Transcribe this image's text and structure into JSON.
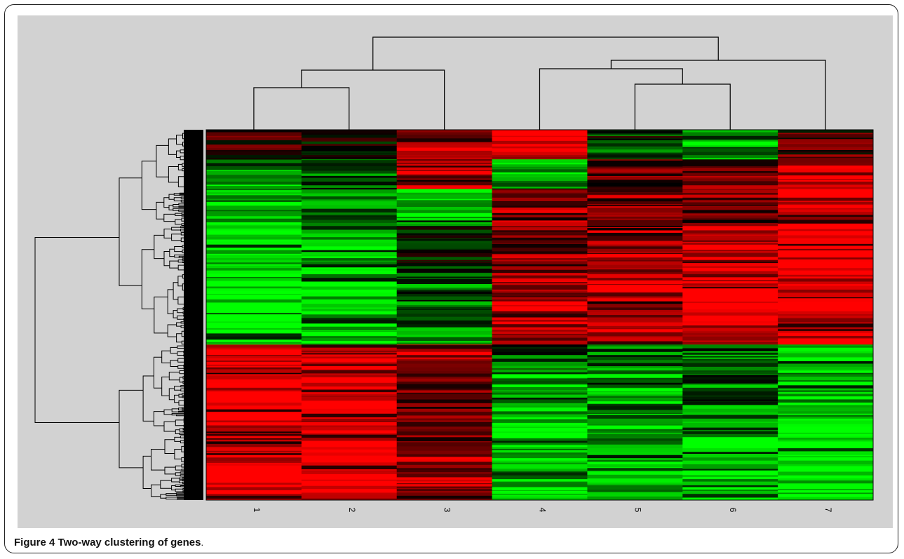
{
  "caption": {
    "label": "Figure 4",
    "text": "Two-way clustering of genes",
    "tail": "."
  },
  "colors": {
    "background": "#d2d2d2",
    "high": "#ff0000",
    "mid": "#000000",
    "low": "#00ff00",
    "dendrogram": "#000000"
  },
  "chart_data": {
    "type": "heatmap",
    "title": "",
    "xlabel": "",
    "ylabel": "",
    "categories": [
      "1",
      "2",
      "3",
      "4",
      "5",
      "6",
      "7"
    ],
    "color_scale": [
      "green",
      "black",
      "red"
    ],
    "value_range": [
      -1,
      1
    ],
    "row_count_approx": 600,
    "column_dendrogram": {
      "merges": [
        [
          "1",
          "2"
        ],
        [
          "(1,2)",
          "3"
        ],
        [
          "5",
          "6"
        ],
        [
          "4",
          "(5,6)"
        ],
        [
          "(4,(5,6))",
          "7"
        ],
        [
          "((1,2),3)",
          "((4,(5,6)),7)"
        ]
      ]
    },
    "row_blocks": [
      {
        "rows_fraction": [
          0.0,
          0.08
        ],
        "values": [
          0.2,
          0.1,
          0.6,
          1.0,
          -0.2,
          -0.6,
          0.3
        ]
      },
      {
        "rows_fraction": [
          0.08,
          0.16
        ],
        "values": [
          -0.6,
          -0.3,
          0.7,
          -0.7,
          0.3,
          0.5,
          0.8
        ]
      },
      {
        "rows_fraction": [
          0.16,
          0.26
        ],
        "values": [
          -0.8,
          -0.4,
          -0.8,
          0.6,
          0.6,
          0.4,
          0.8
        ]
      },
      {
        "rows_fraction": [
          0.26,
          0.4
        ],
        "values": [
          -0.9,
          -0.8,
          -0.2,
          0.5,
          0.7,
          0.8,
          0.9
        ]
      },
      {
        "rows_fraction": [
          0.4,
          0.58
        ],
        "values": [
          -1.0,
          -0.9,
          -0.4,
          0.6,
          0.7,
          0.9,
          0.9
        ]
      },
      {
        "rows_fraction": [
          0.58,
          0.66
        ],
        "values": [
          0.8,
          0.7,
          0.6,
          -0.3,
          -0.4,
          -0.6,
          -0.7
        ]
      },
      {
        "rows_fraction": [
          0.66,
          0.78
        ],
        "values": [
          1.0,
          1.0,
          0.3,
          -0.7,
          -0.6,
          -0.5,
          -0.8
        ]
      },
      {
        "rows_fraction": [
          0.78,
          1.0
        ],
        "values": [
          1.0,
          1.0,
          0.6,
          -0.8,
          -0.6,
          -0.9,
          -1.0
        ]
      }
    ]
  }
}
